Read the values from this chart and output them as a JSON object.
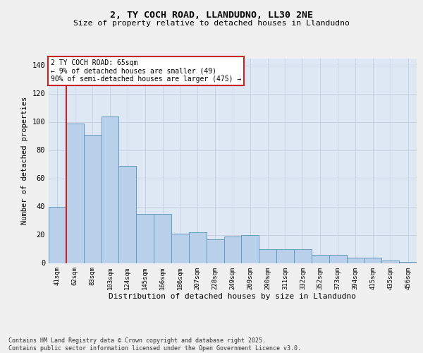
{
  "title1": "2, TY COCH ROAD, LLANDUDNO, LL30 2NE",
  "title2": "Size of property relative to detached houses in Llandudno",
  "xlabel": "Distribution of detached houses by size in Llandudno",
  "ylabel": "Number of detached properties",
  "categories": [
    "41sqm",
    "62sqm",
    "83sqm",
    "103sqm",
    "124sqm",
    "145sqm",
    "166sqm",
    "186sqm",
    "207sqm",
    "228sqm",
    "249sqm",
    "269sqm",
    "290sqm",
    "311sqm",
    "332sqm",
    "352sqm",
    "373sqm",
    "394sqm",
    "415sqm",
    "435sqm",
    "456sqm"
  ],
  "values": [
    40,
    99,
    91,
    104,
    69,
    35,
    35,
    21,
    22,
    17,
    19,
    20,
    10,
    10,
    10,
    6,
    6,
    4,
    4,
    2,
    1
  ],
  "bar_color": "#b8d0ea",
  "bar_edge_color": "#6699bb",
  "grid_color": "#c8d4e4",
  "background_color": "#dde8f4",
  "vline_color": "#cc2222",
  "annotation_line1": "2 TY COCH ROAD: 65sqm",
  "annotation_line2": "← 9% of detached houses are smaller (49)",
  "annotation_line3": "90% of semi-detached houses are larger (475) →",
  "annotation_box_facecolor": "#ffffff",
  "annotation_box_edgecolor": "#cc2222",
  "footer": "Contains HM Land Registry data © Crown copyright and database right 2025.\nContains public sector information licensed under the Open Government Licence v3.0.",
  "ylim_max": 145,
  "yticks": [
    0,
    20,
    40,
    60,
    80,
    100,
    120,
    140
  ],
  "fig_bg": "#f0f0f0"
}
